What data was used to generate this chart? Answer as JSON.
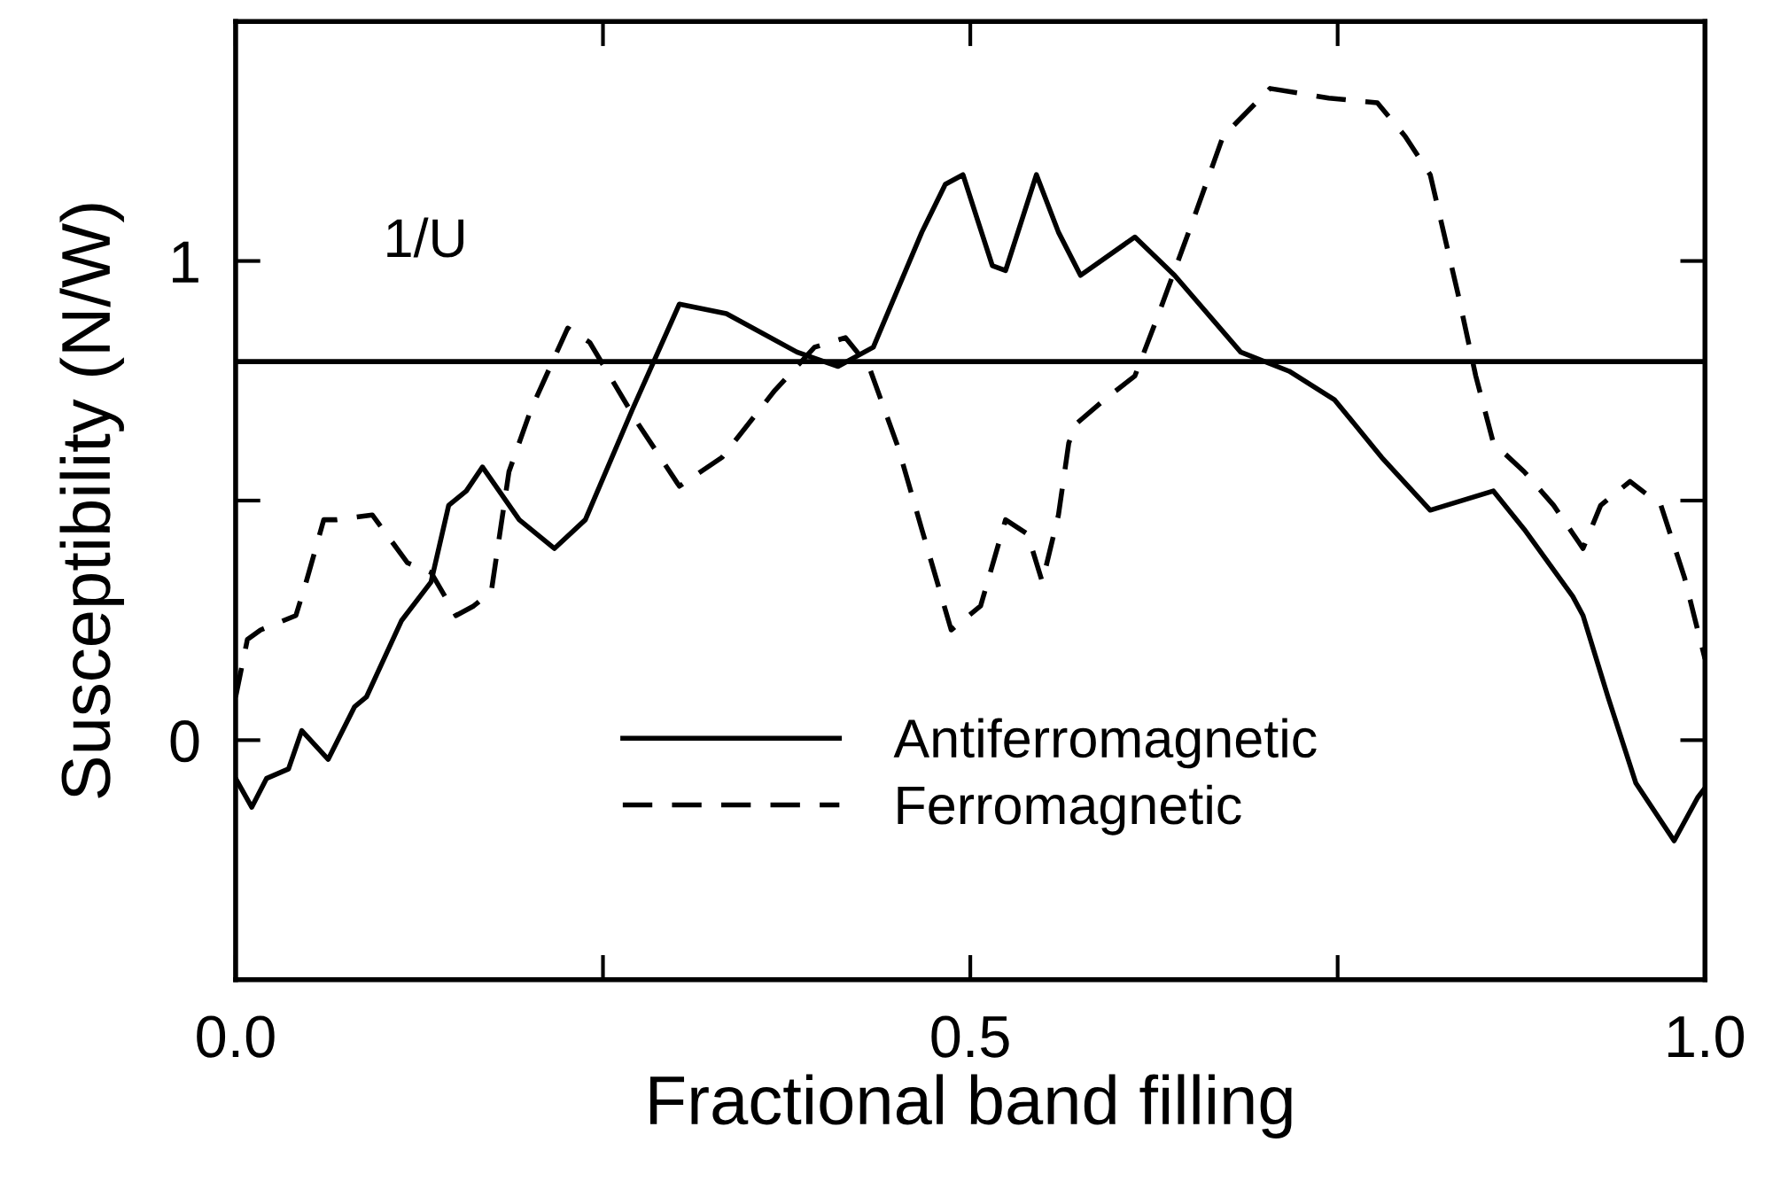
{
  "chart_data": {
    "type": "line",
    "xlabel": "Fractional band filling",
    "ylabel": "Susceptibility (N/W)",
    "xlim": [
      0.0,
      1.0
    ],
    "ylim": [
      -0.5,
      1.5
    ],
    "xticks": [
      {
        "value": 0.0,
        "label": "0.0"
      },
      {
        "value": 0.25,
        "label": null
      },
      {
        "value": 0.5,
        "label": "0.5"
      },
      {
        "value": 0.75,
        "label": null
      },
      {
        "value": 1.0,
        "label": "1.0"
      }
    ],
    "yticks": [
      {
        "value": 0,
        "label": "0"
      },
      {
        "value": 0.5,
        "label": null
      },
      {
        "value": 1,
        "label": "1"
      }
    ],
    "grid": false,
    "legend": "bottom",
    "marker": "none",
    "ref_lines": [
      {
        "axis": "y",
        "value": 0.79,
        "label": "1/U",
        "color": "#000000",
        "line_style": "solid"
      }
    ],
    "series": [
      {
        "name": "Antiferromagnetic",
        "color": "#000000",
        "line_style": "solid",
        "x": [
          0.0,
          0.011,
          0.021,
          0.036,
          0.045,
          0.063,
          0.081,
          0.089,
          0.113,
          0.133,
          0.145,
          0.157,
          0.168,
          0.193,
          0.217,
          0.238,
          0.27,
          0.302,
          0.334,
          0.382,
          0.41,
          0.434,
          0.467,
          0.483,
          0.495,
          0.515,
          0.524,
          0.545,
          0.56,
          0.575,
          0.612,
          0.639,
          0.684,
          0.717,
          0.748,
          0.78,
          0.813,
          0.856,
          0.877,
          0.91,
          0.917,
          0.934,
          0.953,
          0.979,
          0.995,
          1.0
        ],
        "values": [
          -0.08,
          -0.14,
          -0.08,
          -0.06,
          0.02,
          -0.04,
          0.07,
          0.09,
          0.25,
          0.33,
          0.49,
          0.52,
          0.57,
          0.46,
          0.4,
          0.46,
          0.69,
          0.91,
          0.89,
          0.81,
          0.78,
          0.82,
          1.06,
          1.16,
          1.18,
          0.99,
          0.98,
          1.18,
          1.06,
          0.97,
          1.05,
          0.97,
          0.81,
          0.77,
          0.71,
          0.59,
          0.48,
          0.52,
          0.44,
          0.3,
          0.26,
          0.09,
          -0.09,
          -0.21,
          -0.12,
          -0.1
        ]
      },
      {
        "name": "Ferromagnetic",
        "color": "#000000",
        "line_style": "dashed",
        "x": [
          0.0,
          0.008,
          0.017,
          0.041,
          0.048,
          0.06,
          0.069,
          0.093,
          0.117,
          0.133,
          0.15,
          0.162,
          0.174,
          0.186,
          0.201,
          0.226,
          0.241,
          0.274,
          0.302,
          0.331,
          0.367,
          0.394,
          0.415,
          0.431,
          0.451,
          0.467,
          0.487,
          0.507,
          0.524,
          0.539,
          0.549,
          0.56,
          0.567,
          0.572,
          0.591,
          0.612,
          0.627,
          0.651,
          0.672,
          0.704,
          0.744,
          0.777,
          0.796,
          0.813,
          0.832,
          0.844,
          0.856,
          0.877,
          0.897,
          0.917,
          0.929,
          0.949,
          0.97,
          0.986,
          0.995,
          1.0
        ],
        "values": [
          0.09,
          0.21,
          0.23,
          0.26,
          0.33,
          0.46,
          0.46,
          0.47,
          0.37,
          0.35,
          0.26,
          0.28,
          0.31,
          0.56,
          0.69,
          0.86,
          0.83,
          0.66,
          0.53,
          0.59,
          0.73,
          0.82,
          0.84,
          0.78,
          0.61,
          0.44,
          0.23,
          0.28,
          0.46,
          0.43,
          0.33,
          0.47,
          0.62,
          0.66,
          0.71,
          0.76,
          0.88,
          1.08,
          1.26,
          1.36,
          1.34,
          1.33,
          1.26,
          1.18,
          0.93,
          0.76,
          0.62,
          0.56,
          0.49,
          0.4,
          0.49,
          0.54,
          0.49,
          0.34,
          0.23,
          0.17
        ]
      }
    ]
  }
}
